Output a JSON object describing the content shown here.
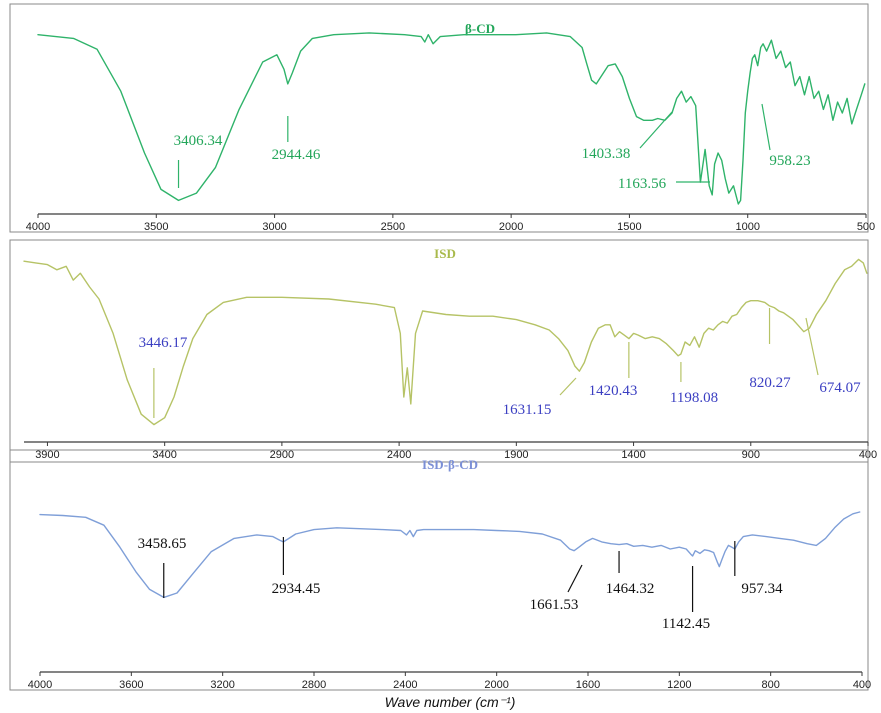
{
  "x_axis_title": "Wave number (cm⁻¹)",
  "chart_data": [
    {
      "type": "line",
      "title": "β-CD",
      "title_color": "#23a65a",
      "line_color": "#2fb36a",
      "label_color": "#23a65a",
      "xlim": [
        4000,
        500
      ],
      "x_ticks": [
        4000,
        3500,
        3000,
        2500,
        2000,
        1500,
        1000,
        500
      ],
      "series": [
        {
          "x": [
            4000,
            3850,
            3750,
            3650,
            3550,
            3480,
            3406,
            3330,
            3250,
            3150,
            3050,
            2990,
            2960,
            2944,
            2925,
            2890,
            2840,
            2750,
            2600,
            2450,
            2380,
            2365,
            2350,
            2330,
            2300,
            2200,
            2100,
            1980,
            1850,
            1750,
            1700,
            1680,
            1660,
            1640,
            1620,
            1590,
            1560,
            1530,
            1500,
            1470,
            1440,
            1403,
            1380,
            1350,
            1320,
            1300,
            1280,
            1260,
            1240,
            1220,
            1200,
            1180,
            1163,
            1150,
            1140,
            1125,
            1110,
            1095,
            1080,
            1060,
            1040,
            1030,
            1020,
            1010,
            1000,
            990,
            980,
            970,
            958,
            945,
            935,
            920,
            900,
            880,
            860,
            840,
            820,
            800,
            780,
            760,
            740,
            720,
            700,
            680,
            660,
            640,
            620,
            600,
            580,
            560,
            540,
            520,
            505
          ],
          "y": [
            0.93,
            0.91,
            0.85,
            0.62,
            0.28,
            0.08,
            0.02,
            0.06,
            0.2,
            0.52,
            0.78,
            0.82,
            0.74,
            0.66,
            0.72,
            0.84,
            0.91,
            0.93,
            0.94,
            0.93,
            0.92,
            0.89,
            0.93,
            0.88,
            0.92,
            0.93,
            0.93,
            0.93,
            0.94,
            0.92,
            0.86,
            0.77,
            0.68,
            0.66,
            0.7,
            0.76,
            0.77,
            0.7,
            0.58,
            0.48,
            0.46,
            0.46,
            0.47,
            0.46,
            0.5,
            0.58,
            0.62,
            0.56,
            0.59,
            0.54,
            0.12,
            0.3,
            0.1,
            0.05,
            0.22,
            0.28,
            0.24,
            0.14,
            0.06,
            0.1,
            0.0,
            0.02,
            0.24,
            0.5,
            0.62,
            0.72,
            0.8,
            0.82,
            0.76,
            0.86,
            0.88,
            0.84,
            0.9,
            0.8,
            0.84,
            0.75,
            0.78,
            0.65,
            0.7,
            0.6,
            0.7,
            0.58,
            0.62,
            0.52,
            0.6,
            0.46,
            0.56,
            0.5,
            0.58,
            0.44,
            0.52,
            0.6,
            0.66
          ]
        }
      ],
      "annotations": [
        {
          "text": "3406.34",
          "x": 3406
        },
        {
          "text": "2944.46",
          "x": 2944
        },
        {
          "text": "1403.38",
          "x": 1403
        },
        {
          "text": "1163.56",
          "x": 1163
        },
        {
          "text": "958.23",
          "x": 958
        }
      ]
    },
    {
      "type": "line",
      "title": "ISD",
      "title_color": "#a9ba4c",
      "line_color": "#b6c366",
      "label_color": "#3b3fc2",
      "xlim": [
        4000,
        400
      ],
      "x_ticks": [
        3900,
        3400,
        2900,
        2400,
        1900,
        1400,
        900,
        400
      ],
      "series": [
        {
          "x": [
            4000,
            3950,
            3900,
            3860,
            3820,
            3790,
            3760,
            3720,
            3680,
            3620,
            3560,
            3500,
            3446,
            3400,
            3360,
            3320,
            3280,
            3220,
            3150,
            3050,
            2900,
            2700,
            2500,
            2420,
            2395,
            2380,
            2365,
            2350,
            2330,
            2300,
            2200,
            2100,
            2000,
            1900,
            1820,
            1760,
            1720,
            1680,
            1650,
            1631,
            1610,
            1580,
            1550,
            1520,
            1500,
            1480,
            1460,
            1440,
            1420,
            1400,
            1380,
            1350,
            1320,
            1290,
            1260,
            1230,
            1210,
            1198,
            1180,
            1160,
            1140,
            1120,
            1100,
            1080,
            1060,
            1040,
            1020,
            1000,
            980,
            960,
            940,
            920,
            900,
            870,
            840,
            820,
            800,
            780,
            760,
            740,
            720,
            700,
            674,
            650,
            620,
            580,
            540,
            500,
            470,
            440,
            420,
            405
          ],
          "y": [
            0.97,
            0.96,
            0.95,
            0.92,
            0.94,
            0.86,
            0.9,
            0.82,
            0.75,
            0.55,
            0.28,
            0.08,
            0.02,
            0.06,
            0.18,
            0.36,
            0.52,
            0.66,
            0.73,
            0.76,
            0.76,
            0.75,
            0.72,
            0.7,
            0.55,
            0.18,
            0.35,
            0.14,
            0.55,
            0.68,
            0.66,
            0.65,
            0.65,
            0.63,
            0.6,
            0.57,
            0.52,
            0.45,
            0.36,
            0.33,
            0.38,
            0.5,
            0.58,
            0.6,
            0.6,
            0.53,
            0.56,
            0.54,
            0.52,
            0.55,
            0.54,
            0.52,
            0.53,
            0.52,
            0.49,
            0.45,
            0.42,
            0.43,
            0.5,
            0.48,
            0.53,
            0.47,
            0.55,
            0.58,
            0.57,
            0.6,
            0.62,
            0.61,
            0.65,
            0.66,
            0.7,
            0.73,
            0.74,
            0.74,
            0.73,
            0.71,
            0.7,
            0.68,
            0.67,
            0.65,
            0.63,
            0.6,
            0.56,
            0.58,
            0.66,
            0.74,
            0.84,
            0.92,
            0.94,
            0.98,
            0.96,
            0.9
          ]
        }
      ],
      "annotations": [
        {
          "text": "3446.17",
          "x": 3446
        },
        {
          "text": "1631.15",
          "x": 1631
        },
        {
          "text": "1420.43",
          "x": 1420
        },
        {
          "text": "1198.08",
          "x": 1198
        },
        {
          "text": "820.27",
          "x": 820
        },
        {
          "text": "674.07",
          "x": 674
        }
      ]
    },
    {
      "type": "line",
      "title": "ISD-β-CD",
      "title_color": "#7b8fd6",
      "line_color": "#7f9fd8",
      "label_color": "#111111",
      "xlim": [
        4000,
        400
      ],
      "x_ticks": [
        4000,
        3600,
        3200,
        2800,
        2400,
        2000,
        1600,
        1200,
        800,
        400
      ],
      "series": [
        {
          "x": [
            4000,
            3900,
            3800,
            3720,
            3650,
            3580,
            3520,
            3458,
            3400,
            3330,
            3250,
            3150,
            3050,
            2980,
            2950,
            2934,
            2910,
            2880,
            2800,
            2700,
            2600,
            2500,
            2420,
            2395,
            2380,
            2365,
            2350,
            2320,
            2200,
            2100,
            2000,
            1900,
            1800,
            1720,
            1680,
            1661,
            1640,
            1610,
            1580,
            1540,
            1500,
            1464,
            1430,
            1400,
            1360,
            1320,
            1280,
            1240,
            1200,
            1170,
            1150,
            1142,
            1130,
            1110,
            1090,
            1070,
            1050,
            1035,
            1025,
            1015,
            1000,
            985,
            970,
            957,
            940,
            920,
            880,
            820,
            760,
            700,
            640,
            600,
            560,
            520,
            480,
            440,
            410
          ],
          "y": [
            0.97,
            0.96,
            0.94,
            0.85,
            0.6,
            0.32,
            0.12,
            0.03,
            0.08,
            0.3,
            0.55,
            0.7,
            0.74,
            0.72,
            0.68,
            0.66,
            0.7,
            0.75,
            0.8,
            0.82,
            0.81,
            0.8,
            0.79,
            0.74,
            0.79,
            0.72,
            0.79,
            0.8,
            0.8,
            0.8,
            0.79,
            0.78,
            0.75,
            0.68,
            0.58,
            0.56,
            0.6,
            0.66,
            0.7,
            0.66,
            0.64,
            0.63,
            0.64,
            0.61,
            0.62,
            0.6,
            0.62,
            0.58,
            0.6,
            0.58,
            0.52,
            0.5,
            0.56,
            0.53,
            0.57,
            0.56,
            0.54,
            0.44,
            0.38,
            0.45,
            0.55,
            0.62,
            0.6,
            0.58,
            0.66,
            0.72,
            0.74,
            0.72,
            0.7,
            0.68,
            0.64,
            0.62,
            0.7,
            0.82,
            0.92,
            0.98,
            1.0
          ]
        }
      ],
      "annotations": [
        {
          "text": "3458.65",
          "x": 3458
        },
        {
          "text": "2934.45",
          "x": 2934
        },
        {
          "text": "1661.53",
          "x": 1661
        },
        {
          "text": "1464.32",
          "x": 1464
        },
        {
          "text": "1142.45",
          "x": 1142
        },
        {
          "text": "957.34",
          "x": 957
        }
      ]
    }
  ]
}
